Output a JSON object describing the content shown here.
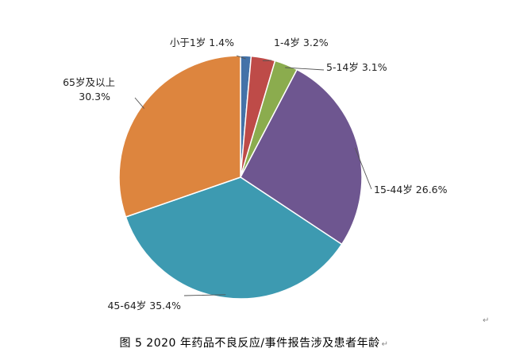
{
  "chart_data": {
    "type": "pie",
    "slices": [
      {
        "label": "小于1岁",
        "value": 1.4,
        "value_text": "1.4%",
        "color": "#4472a8"
      },
      {
        "label": "1-4岁",
        "value": 3.2,
        "value_text": "3.2%",
        "color": "#be4b48"
      },
      {
        "label": "5-14岁",
        "value": 3.1,
        "value_text": "3.1%",
        "color": "#8bac4e"
      },
      {
        "label": "15-44岁",
        "value": 26.6,
        "value_text": "26.6%",
        "color": "#6e5690"
      },
      {
        "label": "45-64岁",
        "value": 35.4,
        "value_text": "35.4%",
        "color": "#3d9ab1"
      },
      {
        "label": "65岁及以上",
        "value": 30.3,
        "value_text": "30.3%",
        "color": "#dd853e"
      }
    ],
    "start_angle": "12 o'clock",
    "direction": "clockwise",
    "label_style": "outside with leader lines"
  },
  "caption": {
    "text": "图 5   2020 年药品不良反应/事件报告涉及患者年龄",
    "end_mark": "↵"
  },
  "paragraph_mark": "↵"
}
